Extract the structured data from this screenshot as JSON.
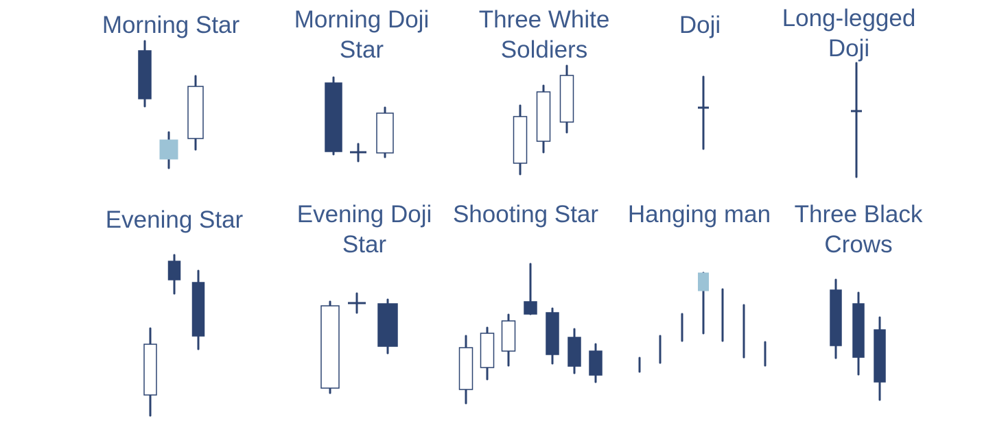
{
  "colors": {
    "title": "#3d5a8c",
    "bearish_body": "#2c4370",
    "bullish_body": "#ffffff",
    "neutral_star_body": "#9cc3d6",
    "outline": "#2c4370"
  },
  "patterns": [
    {
      "key": "morning-star",
      "title_lines": [
        "Morning Star"
      ]
    },
    {
      "key": "morning-doji-star",
      "title_lines": [
        "Morning Doji",
        "Star"
      ]
    },
    {
      "key": "three-white-soldiers",
      "title_lines": [
        "Three White",
        "Soldiers"
      ]
    },
    {
      "key": "doji",
      "title_lines": [
        "Doji"
      ]
    },
    {
      "key": "long-legged-doji",
      "title_lines": [
        "Long-legged",
        "Doji"
      ]
    },
    {
      "key": "evening-star",
      "title_lines": [
        "Evening Star"
      ]
    },
    {
      "key": "evening-doji-star",
      "title_lines": [
        "Evening Doji",
        "Star"
      ]
    },
    {
      "key": "shooting-star",
      "title_lines": [
        "Shooting Star"
      ]
    },
    {
      "key": "hanging-man",
      "title_lines": [
        "Hanging man"
      ]
    },
    {
      "key": "three-black-crows",
      "title_lines": [
        "Three Black",
        "Crows"
      ]
    }
  ]
}
